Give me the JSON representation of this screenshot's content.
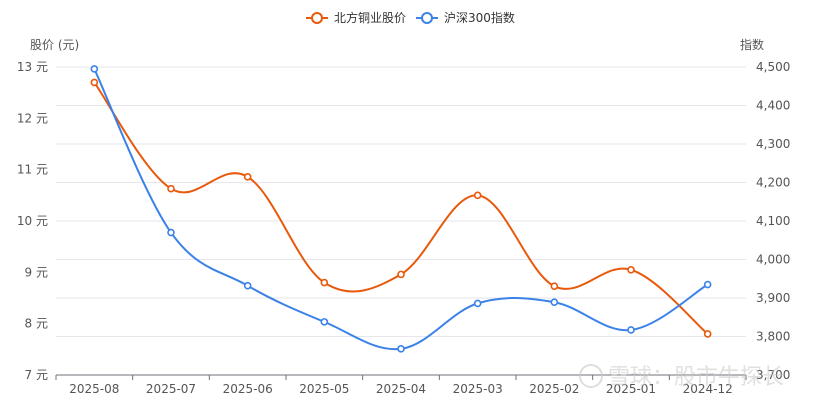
{
  "chart_data": {
    "type": "line",
    "categories": [
      "2025-08",
      "2025-07",
      "2025-06",
      "2025-05",
      "2025-04",
      "2025-03",
      "2025-02",
      "2025-01",
      "2024-12"
    ],
    "series": [
      {
        "name": "北方铜业股价",
        "color": "#e8590c",
        "axis": "left",
        "values": [
          12.7,
          10.63,
          10.86,
          8.8,
          8.96,
          10.5,
          8.73,
          9.05,
          7.8
        ]
      },
      {
        "name": "沪深300指数",
        "color": "#3b82e8",
        "axis": "right",
        "values": [
          4495,
          4070,
          3932,
          3838,
          3768,
          3886,
          3889,
          3817,
          3935
        ]
      }
    ],
    "y_left": {
      "title": "股价 (元)",
      "range": [
        7,
        13
      ],
      "ticks": [
        "7 元",
        "8 元",
        "9 元",
        "10 元",
        "11 元",
        "12 元",
        "13 元"
      ]
    },
    "y_right": {
      "title": "指数",
      "range": [
        3700,
        4500
      ],
      "ticks": [
        "3,700",
        "3,800",
        "3,900",
        "4,000",
        "4,100",
        "4,200",
        "4,300",
        "4,400",
        "4,500"
      ]
    },
    "grid": true,
    "legend_position": "top-center"
  },
  "watermark": "雪球：股市牛探长"
}
